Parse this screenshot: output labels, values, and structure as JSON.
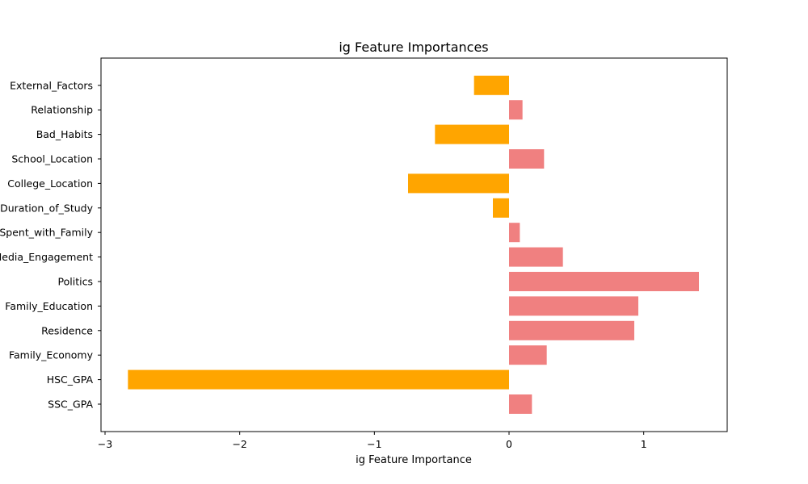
{
  "chart_data": {
    "type": "bar",
    "orientation": "horizontal",
    "title": "ig Feature Importances",
    "xlabel": "ig Feature Importance",
    "ylabel": "",
    "xlim": [
      -3.03,
      1.62
    ],
    "xticks": [
      -3,
      -2,
      -1,
      0,
      1
    ],
    "xtick_labels": [
      "−3",
      "−2",
      "−1",
      "0",
      "1"
    ],
    "grid": false,
    "legend": "none",
    "positive_color": "#f08080",
    "negative_color": "#ffa500",
    "categories": [
      "SSC_GPA",
      "HSC_GPA",
      "Family_Economy",
      "Residence",
      "Family_Education",
      "Politics",
      "Social_Media_Engagement",
      "Average_Time_Spent_with_Family",
      "Duration_of_Study",
      "College_Location",
      "School_Location",
      "Bad_Habits",
      "Relationship",
      "External_Factors"
    ],
    "values": [
      0.17,
      -2.83,
      0.28,
      0.93,
      0.96,
      1.41,
      0.4,
      0.08,
      -0.12,
      -0.75,
      0.26,
      -0.55,
      0.1,
      -0.26
    ]
  }
}
